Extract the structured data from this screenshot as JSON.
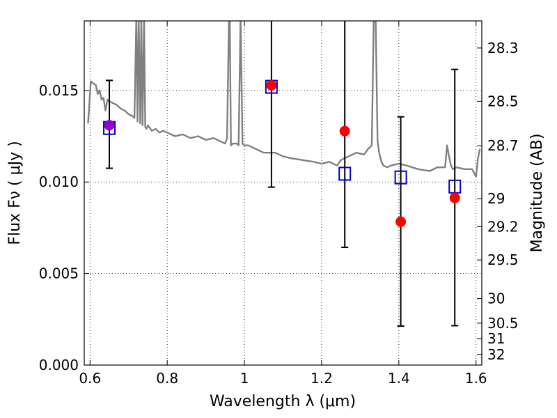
{
  "chart_data": {
    "type": "scatter",
    "title": "",
    "xlabel": "Wavelength  λ (μm)",
    "ylabel": "Flux  Fν  ( μJy )",
    "y2label": "Magnitude (AB)",
    "xlim": [
      0.585,
      1.615
    ],
    "ylim": [
      0.0,
      0.0188
    ],
    "grid": true,
    "x_ticks": [
      0.6,
      0.8,
      1.0,
      1.2,
      1.4,
      1.6
    ],
    "x_tick_labels": [
      "0.6",
      "0.8",
      "1",
      "1.2",
      "1.4",
      "1.6"
    ],
    "y_ticks": [
      0.0,
      0.005,
      0.01,
      0.015
    ],
    "y_tick_labels": [
      "0.000",
      "0.005",
      "0.010",
      "0.015"
    ],
    "y2_ticks": [
      {
        "label": "28.3",
        "flux": 0.01732
      },
      {
        "label": "28.5",
        "flux": 0.01441
      },
      {
        "label": "28.7",
        "flux": 0.01198
      },
      {
        "label": "29",
        "flux": 0.00909
      },
      {
        "label": "29.2",
        "flux": 0.00756
      },
      {
        "label": "29.5",
        "flux": 0.00574
      },
      {
        "label": "30",
        "flux": 0.00363
      },
      {
        "label": "30.5",
        "flux": 0.00229
      },
      {
        "label": "31",
        "flux": 0.00145
      },
      {
        "label": "32",
        "flux": 0.00058
      }
    ],
    "series": [
      {
        "kind": "model-spectrum",
        "color": "#808080",
        "x": [
          0.595,
          0.602,
          0.607,
          0.615,
          0.62,
          0.625,
          0.63,
          0.635,
          0.64,
          0.645,
          0.65,
          0.66,
          0.67,
          0.68,
          0.69,
          0.7,
          0.71,
          0.715,
          0.72,
          0.723,
          0.726,
          0.73,
          0.733,
          0.736,
          0.74,
          0.743,
          0.746,
          0.75,
          0.76,
          0.77,
          0.78,
          0.79,
          0.8,
          0.82,
          0.84,
          0.86,
          0.88,
          0.9,
          0.92,
          0.94,
          0.95,
          0.955,
          0.96,
          0.962,
          0.965,
          0.97,
          0.975,
          0.98,
          0.985,
          0.99,
          0.995,
          1.0,
          1.005,
          1.01,
          1.02,
          1.03,
          1.04,
          1.05,
          1.06,
          1.07,
          1.08,
          1.1,
          1.12,
          1.15,
          1.18,
          1.2,
          1.22,
          1.24,
          1.25,
          1.27,
          1.29,
          1.31,
          1.32,
          1.33,
          1.335,
          1.34,
          1.345,
          1.35,
          1.355,
          1.36,
          1.37,
          1.38,
          1.4,
          1.42,
          1.45,
          1.48,
          1.5,
          1.52,
          1.525,
          1.53,
          1.535,
          1.54,
          1.55,
          1.57,
          1.59,
          1.6,
          1.605,
          1.61
        ],
        "y": [
          0.0132,
          0.0155,
          0.0154,
          0.0153,
          0.0148,
          0.015,
          0.0145,
          0.0146,
          0.0139,
          0.0145,
          0.0144,
          0.0143,
          0.0142,
          0.014,
          0.0139,
          0.0137,
          0.0136,
          0.0135,
          0.019,
          0.0133,
          0.019,
          0.0132,
          0.019,
          0.0131,
          0.019,
          0.013,
          0.0129,
          0.0131,
          0.0128,
          0.0129,
          0.0127,
          0.0128,
          0.0127,
          0.0125,
          0.0126,
          0.0124,
          0.0125,
          0.0123,
          0.0124,
          0.0122,
          0.0121,
          0.0124,
          0.019,
          0.019,
          0.012,
          0.0121,
          0.0121,
          0.0121,
          0.012,
          0.019,
          0.0121,
          0.012,
          0.012,
          0.012,
          0.0119,
          0.0118,
          0.0117,
          0.0116,
          0.0116,
          0.0116,
          0.0116,
          0.0114,
          0.0113,
          0.0112,
          0.0111,
          0.011,
          0.0111,
          0.0109,
          0.0112,
          0.0114,
          0.0116,
          0.0115,
          0.0118,
          0.012,
          0.019,
          0.019,
          0.0122,
          0.0115,
          0.0111,
          0.0109,
          0.0108,
          0.0109,
          0.011,
          0.0109,
          0.0107,
          0.0106,
          0.0108,
          0.0108,
          0.012,
          0.0114,
          0.0109,
          0.0107,
          0.0108,
          0.0107,
          0.0107,
          0.0103,
          0.0113,
          0.0118
        ]
      },
      {
        "kind": "observed",
        "marker": "circle",
        "color": "#ff0000",
        "x": [
          0.65,
          1.07,
          1.26,
          1.405,
          1.545
        ],
        "y": [
          0.0131,
          0.01528,
          0.01278,
          0.00783,
          0.00913
        ],
        "yerr_low": [
          0.01075,
          0.00972,
          0.00643,
          0.00213,
          0.00215
        ],
        "yerr_high": [
          0.01555,
          0.0189,
          0.0189,
          0.01356,
          0.01615
        ]
      },
      {
        "kind": "model-photometry",
        "marker": "open-square",
        "color": "#0000cc",
        "x": [
          0.65,
          1.07,
          1.26,
          1.405,
          1.545
        ],
        "y": [
          0.01295,
          0.0152,
          0.01045,
          0.01025,
          0.00975
        ]
      }
    ],
    "overlap_color": "#9900cc"
  }
}
